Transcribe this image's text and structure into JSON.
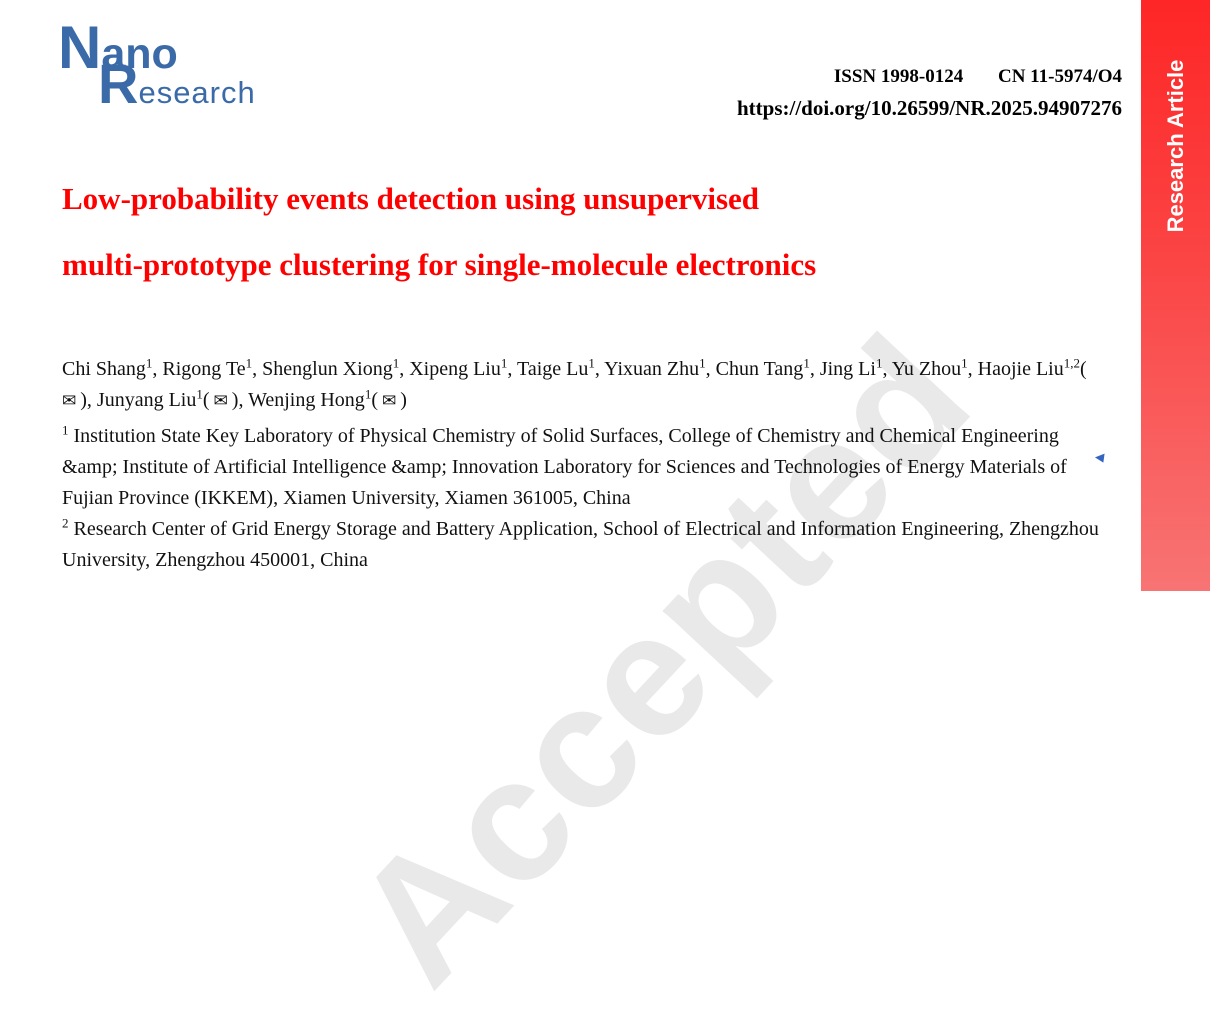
{
  "header": {
    "logo": {
      "word1_initial": "N",
      "word1_rest": "ano",
      "word2_initial": "R",
      "word2_rest": "esearch",
      "color": "#3a6ba8"
    },
    "issn": "ISSN 1998-0124",
    "cn": "CN 11-5974/O4",
    "doi": "https://doi.org/10.26599/NR.2025.94907276"
  },
  "banner": {
    "label": "Research Article",
    "color_top": "#fe2626",
    "color_bottom": "#f87474",
    "text_color": "#ffffff"
  },
  "article": {
    "title_line1": "Low-probability events detection using unsupervised",
    "title_line2": "multi-prototype clustering for single-molecule electronics",
    "title_color": "#fe0000",
    "authors": [
      {
        "name": "Chi Shang",
        "sup": "1",
        "corresponding": false
      },
      {
        "name": "Rigong Te",
        "sup": "1",
        "corresponding": false
      },
      {
        "name": "Shenglun Xiong",
        "sup": "1",
        "corresponding": false
      },
      {
        "name": "Xipeng Liu",
        "sup": "1",
        "corresponding": false
      },
      {
        "name": "Taige Lu",
        "sup": "1",
        "corresponding": false
      },
      {
        "name": "Yixuan Zhu",
        "sup": "1",
        "corresponding": false
      },
      {
        "name": "Chun Tang",
        "sup": "1",
        "corresponding": false
      },
      {
        "name": "Jing Li",
        "sup": "1",
        "corresponding": false
      },
      {
        "name": "Yu Zhou",
        "sup": "1",
        "corresponding": false
      },
      {
        "name": "Haojie Liu",
        "sup": "1,2",
        "corresponding": true
      },
      {
        "name": "Junyang Liu",
        "sup": "1",
        "corresponding": true
      },
      {
        "name": "Wenjing Hong",
        "sup": "1",
        "corresponding": true
      }
    ],
    "corresponding_icon": "envelope-icon",
    "affiliations": [
      {
        "sup": "1",
        "text": "Institution State Key Laboratory of Physical Chemistry of Solid Surfaces, College of Chemistry and Chemical Engineering &amp; Institute of Artificial Intelligence &amp; Innovation Laboratory for Sciences and Technologies of Energy Materials of Fujian Province (IKKEM), Xiamen University, Xiamen 361005, China"
      },
      {
        "sup": "2",
        "text": "Research Center of Grid Energy Storage and Battery Application, School of Electrical and Information Engineering, Zhengzhou University, Zhengzhou 450001, China"
      }
    ]
  },
  "watermark": {
    "text": "Accepted",
    "color": "#e9e9e9"
  }
}
